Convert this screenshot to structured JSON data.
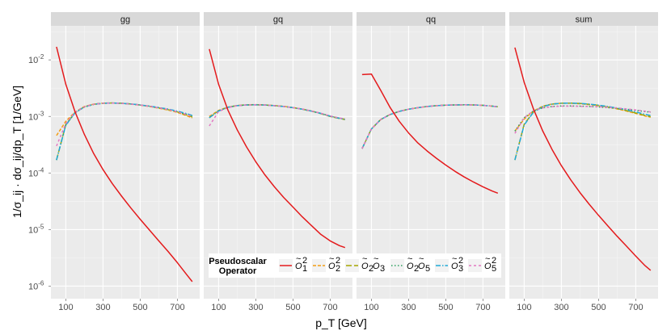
{
  "chart_data": {
    "type": "line",
    "facets": [
      "gg",
      "gq",
      "qq",
      "sum"
    ],
    "xlabel": "p_T [GeV]",
    "ylabel": "1/σ_ij · dσ_ij/dp_T [1/GeV]",
    "x_ticks": [
      100,
      300,
      500,
      700
    ],
    "xlim": [
      20,
      820
    ],
    "y_scale": "log",
    "y_ticks": [
      {
        "value": 0.01,
        "mantissa": "10",
        "exp": "-2"
      },
      {
        "value": 0.001,
        "mantissa": "10",
        "exp": "-3"
      },
      {
        "value": 0.0001,
        "mantissa": "10",
        "exp": "-4"
      },
      {
        "value": 1e-05,
        "mantissa": "10",
        "exp": "-5"
      },
      {
        "value": 1e-06,
        "mantissa": "10",
        "exp": "-6"
      }
    ],
    "ylim": [
      6e-07,
      0.04
    ],
    "x": [
      50,
      100,
      150,
      200,
      250,
      300,
      350,
      400,
      450,
      500,
      550,
      600,
      650,
      700,
      750,
      780
    ],
    "legend": {
      "title_line1": "Pseudoscalar",
      "title_line2": "Operator",
      "placement": "bottom-center",
      "entries": [
        {
          "key": "O1sq",
          "color": "#e41a1c",
          "dash": "",
          "base": "O",
          "sub": "1",
          "sup": "2"
        },
        {
          "key": "O2sq",
          "color": "#f39c12",
          "dash": "4,2",
          "base": "O",
          "sub": "2",
          "sup": "2"
        },
        {
          "key": "O2O3",
          "color": "#a6a600",
          "dash": "7,3",
          "base": "O",
          "sub": "2",
          "base2": "O",
          "sub2": "3"
        },
        {
          "key": "O2O5",
          "color": "#2ca25f",
          "dash": "1.5,2.5",
          "base": "O",
          "sub": "2",
          "base2": "O",
          "sub2": "5"
        },
        {
          "key": "O3sq",
          "color": "#1fa9d8",
          "dash": "6,2,1.5,2",
          "base": "O",
          "sub": "3",
          "sup": "2"
        },
        {
          "key": "O5sq",
          "color": "#e377c2",
          "dash": "3,3",
          "base": "O",
          "sub": "5",
          "sup": "2"
        }
      ]
    },
    "panels": [
      {
        "name": "gg",
        "series": [
          {
            "name": "O1sq",
            "values": [
              0.017,
              0.0037,
              0.0012,
              0.00048,
              0.00022,
              0.000115,
              6.5e-05,
              3.9e-05,
              2.4e-05,
              1.52e-05,
              9.8e-06,
              6.3e-06,
              4.1e-06,
              2.6e-06,
              1.6e-06,
              1.2e-06
            ]
          },
          {
            "name": "O2sq",
            "values": [
              0.00046,
              0.00082,
              0.0012,
              0.0015,
              0.00165,
              0.00172,
              0.00173,
              0.00171,
              0.00165,
              0.00158,
              0.0015,
              0.0014,
              0.0013,
              0.00118,
              0.00103,
              0.00094
            ]
          },
          {
            "name": "O2O3",
            "values": [
              0.00017,
              0.00072,
              0.00118,
              0.00148,
              0.00164,
              0.00171,
              0.00173,
              0.00171,
              0.00166,
              0.00159,
              0.00151,
              0.00142,
              0.00132,
              0.0012,
              0.00106,
              0.00098
            ]
          },
          {
            "name": "O2O5",
            "values": [
              0.00017,
              0.0007,
              0.00116,
              0.00146,
              0.00163,
              0.0017,
              0.00172,
              0.0017,
              0.00166,
              0.0016,
              0.00152,
              0.00143,
              0.00134,
              0.00122,
              0.0011,
              0.00102
            ]
          },
          {
            "name": "O3sq",
            "values": [
              0.00017,
              0.0007,
              0.00117,
              0.00147,
              0.00164,
              0.00171,
              0.00173,
              0.00171,
              0.00166,
              0.0016,
              0.00152,
              0.00144,
              0.00135,
              0.00124,
              0.00112,
              0.00104
            ]
          },
          {
            "name": "O5sq",
            "values": [
              0.0003,
              0.00075,
              0.00119,
              0.00148,
              0.00164,
              0.00171,
              0.00172,
              0.0017,
              0.00165,
              0.00159,
              0.00151,
              0.00142,
              0.00133,
              0.00121,
              0.00108,
              0.001
            ]
          }
        ]
      },
      {
        "name": "gq",
        "series": [
          {
            "name": "O1sq",
            "values": [
              0.0155,
              0.0037,
              0.0013,
              0.00058,
              0.00029,
              0.000158,
              9.2e-05,
              5.7e-05,
              3.7e-05,
              2.5e-05,
              1.68e-05,
              1.17e-05,
              8.2e-06,
              6.3e-06,
              5.2e-06,
              4.8e-06
            ]
          },
          {
            "name": "O2sq",
            "values": [
              0.001,
              0.00128,
              0.00146,
              0.00156,
              0.00161,
              0.00162,
              0.0016,
              0.00156,
              0.00151,
              0.00144,
              0.00135,
              0.00125,
              0.00113,
              0.00101,
              0.00093,
              0.00089
            ]
          },
          {
            "name": "O2O3",
            "values": [
              0.00095,
              0.00126,
              0.00145,
              0.00156,
              0.0016,
              0.00161,
              0.00159,
              0.00155,
              0.0015,
              0.00143,
              0.00134,
              0.00124,
              0.00112,
              0.001,
              0.00092,
              0.00088
            ]
          },
          {
            "name": "O2O5",
            "values": [
              0.00095,
              0.00125,
              0.00145,
              0.00155,
              0.0016,
              0.00161,
              0.00159,
              0.00155,
              0.0015,
              0.00143,
              0.00134,
              0.00124,
              0.00113,
              0.00101,
              0.00093,
              0.00089
            ]
          },
          {
            "name": "O3sq",
            "values": [
              0.00095,
              0.00125,
              0.00145,
              0.00155,
              0.0016,
              0.00161,
              0.00159,
              0.00155,
              0.0015,
              0.00143,
              0.00134,
              0.00124,
              0.00113,
              0.00101,
              0.00093,
              0.00089
            ]
          },
          {
            "name": "O5sq",
            "values": [
              0.00068,
              0.00122,
              0.00143,
              0.00155,
              0.0016,
              0.00161,
              0.00159,
              0.00155,
              0.0015,
              0.00143,
              0.00135,
              0.00125,
              0.00114,
              0.00102,
              0.00094,
              0.0009
            ]
          }
        ]
      },
      {
        "name": "qq",
        "series": [
          {
            "name": "O1sq",
            "values": [
              0.0055,
              0.0056,
              0.0029,
              0.00145,
              0.00082,
              0.00051,
              0.00034,
              0.000245,
              0.000182,
              0.000138,
              0.000107,
              8.5e-05,
              6.9e-05,
              5.7e-05,
              4.8e-05,
              4.4e-05
            ]
          },
          {
            "name": "O2sq",
            "values": [
              0.00027,
              0.0006,
              0.00088,
              0.00108,
              0.00123,
              0.00134,
              0.00143,
              0.0015,
              0.00155,
              0.00158,
              0.0016,
              0.00161,
              0.0016,
              0.00157,
              0.00152,
              0.00148
            ]
          },
          {
            "name": "O2O3",
            "values": [
              0.00027,
              0.0006,
              0.00088,
              0.00108,
              0.00123,
              0.00134,
              0.00143,
              0.0015,
              0.00155,
              0.00158,
              0.0016,
              0.00161,
              0.0016,
              0.00157,
              0.00152,
              0.00148
            ]
          },
          {
            "name": "O2O5",
            "values": [
              0.00027,
              0.0006,
              0.00088,
              0.00108,
              0.00123,
              0.00134,
              0.00143,
              0.0015,
              0.00155,
              0.00158,
              0.0016,
              0.00161,
              0.0016,
              0.00157,
              0.00152,
              0.00148
            ]
          },
          {
            "name": "O3sq",
            "values": [
              0.00027,
              0.0006,
              0.00088,
              0.00108,
              0.00123,
              0.00134,
              0.00143,
              0.0015,
              0.00155,
              0.00158,
              0.0016,
              0.00161,
              0.0016,
              0.00157,
              0.00152,
              0.00148
            ]
          },
          {
            "name": "O5sq",
            "values": [
              0.00027,
              0.0006,
              0.00088,
              0.00108,
              0.00123,
              0.00134,
              0.00143,
              0.0015,
              0.00155,
              0.00158,
              0.0016,
              0.00161,
              0.0016,
              0.00157,
              0.00152,
              0.00148
            ]
          }
        ]
      },
      {
        "name": "sum",
        "series": [
          {
            "name": "O1sq",
            "values": [
              0.0165,
              0.004,
              0.00135,
              0.00055,
              0.00026,
              0.000135,
              7.6e-05,
              4.5e-05,
              2.8e-05,
              1.78e-05,
              1.16e-05,
              7.6e-06,
              5.1e-06,
              3.4e-06,
              2.3e-06,
              1.9e-06
            ]
          },
          {
            "name": "O2sq",
            "values": [
              0.00055,
              0.0009,
              0.00125,
              0.00152,
              0.00166,
              0.00171,
              0.00171,
              0.00168,
              0.00162,
              0.00155,
              0.00146,
              0.00136,
              0.00125,
              0.00113,
              0.00102,
              0.00097
            ]
          },
          {
            "name": "O2O3",
            "values": [
              0.00017,
              0.00073,
              0.0012,
              0.0015,
              0.00165,
              0.00171,
              0.00172,
              0.0017,
              0.00164,
              0.00157,
              0.00148,
              0.00138,
              0.00127,
              0.00115,
              0.00104,
              0.00099
            ]
          },
          {
            "name": "O2O5",
            "values": [
              0.00055,
              0.00095,
              0.00125,
              0.00142,
              0.0015,
              0.00153,
              0.00153,
              0.00152,
              0.0015,
              0.00147,
              0.00143,
              0.00139,
              0.00134,
              0.00128,
              0.00122,
              0.00119
            ]
          },
          {
            "name": "O3sq",
            "values": [
              0.00017,
              0.00071,
              0.00119,
              0.00149,
              0.00165,
              0.00171,
              0.00172,
              0.0017,
              0.00165,
              0.00158,
              0.0015,
              0.00141,
              0.00131,
              0.0012,
              0.00109,
              0.00104
            ]
          },
          {
            "name": "O5sq",
            "values": [
              0.0005,
              0.00095,
              0.00126,
              0.00142,
              0.00149,
              0.00152,
              0.00152,
              0.00151,
              0.0015,
              0.00148,
              0.00145,
              0.00141,
              0.00136,
              0.0013,
              0.00124,
              0.0012
            ]
          }
        ]
      }
    ]
  }
}
